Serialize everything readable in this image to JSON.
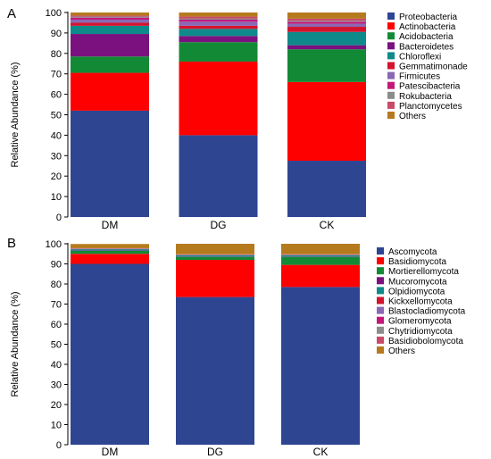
{
  "chart_data": [
    {
      "panel_label": "A",
      "type": "bar",
      "stacked": true,
      "categories": [
        "DM",
        "DG",
        "CK"
      ],
      "ylabel": "Relative Abundance (%)",
      "ylim": [
        0,
        100
      ],
      "yticks": [
        "0",
        "10",
        "20",
        "30",
        "40",
        "50",
        "60",
        "70",
        "80",
        "90",
        "100"
      ],
      "grid": false,
      "legend_position": "right",
      "series": [
        {
          "name": "Proteobacteria",
          "color": "#2e4592",
          "values": [
            52,
            40,
            27.5
          ]
        },
        {
          "name": "Actinobacteria",
          "color": "#ff0000",
          "values": [
            18.5,
            36,
            38.5
          ]
        },
        {
          "name": "Acidobacteria",
          "color": "#128a35",
          "values": [
            8,
            9.5,
            16
          ]
        },
        {
          "name": "Bacteroidetes",
          "color": "#7a117f",
          "values": [
            11,
            3,
            2
          ]
        },
        {
          "name": "Chloroflexi",
          "color": "#0f8a8a",
          "values": [
            4,
            3.5,
            6.5
          ]
        },
        {
          "name": "Gemmatimonade",
          "color": "#d4132d",
          "values": [
            1.5,
            1.5,
            2.5
          ]
        },
        {
          "name": "Firmicutes",
          "color": "#8a68b4",
          "values": [
            1.5,
            2,
            1.5
          ]
        },
        {
          "name": "Patescibacteria",
          "color": "#c2187a",
          "values": [
            1,
            1,
            1
          ]
        },
        {
          "name": "Rokubacteria",
          "color": "#8c8c8c",
          "values": [
            0.5,
            0.5,
            0.5
          ]
        },
        {
          "name": "Planctomycetes",
          "color": "#c94a68",
          "values": [
            0.5,
            1,
            1
          ]
        },
        {
          "name": "Others",
          "color": "#b67a1e",
          "values": [
            2,
            2,
            3
          ]
        }
      ]
    },
    {
      "panel_label": "B",
      "type": "bar",
      "stacked": true,
      "categories": [
        "DM",
        "DG",
        "CK"
      ],
      "ylabel": "Relative Abundance (%)",
      "ylim": [
        0,
        100
      ],
      "yticks": [
        "0",
        "10",
        "20",
        "30",
        "40",
        "50",
        "60",
        "70",
        "80",
        "90",
        "100"
      ],
      "grid": false,
      "legend_position": "right",
      "series": [
        {
          "name": "Ascomycota",
          "color": "#2e4592",
          "values": [
            90,
            73.5,
            78.5
          ]
        },
        {
          "name": "Basidiomycota",
          "color": "#ff0000",
          "values": [
            5,
            18.5,
            11
          ]
        },
        {
          "name": "Mortierellomycota",
          "color": "#128a35",
          "values": [
            1.5,
            1.5,
            4
          ]
        },
        {
          "name": "Mucoromycota",
          "color": "#7a117f",
          "values": [
            0.2,
            0.2,
            0.2
          ]
        },
        {
          "name": "Olpidiomycota",
          "color": "#0f8a8a",
          "values": [
            0.6,
            0.6,
            0.6
          ]
        },
        {
          "name": "Kickxellomycota",
          "color": "#d4132d",
          "values": [
            0.1,
            0.1,
            0.1
          ]
        },
        {
          "name": "Blastocladiomycota",
          "color": "#8a68b4",
          "values": [
            0.1,
            0.1,
            0.1
          ]
        },
        {
          "name": "Glomeromycota",
          "color": "#c2187a",
          "values": [
            0.1,
            0.1,
            0.1
          ]
        },
        {
          "name": "Chytridiomycota",
          "color": "#8c8c8c",
          "values": [
            0.1,
            0.1,
            0.1
          ]
        },
        {
          "name": "Basidiobolomycota",
          "color": "#c94a68",
          "values": [
            0.1,
            0.1,
            0.1
          ]
        },
        {
          "name": "Others",
          "color": "#b67a1e",
          "values": [
            2.1,
            5.3,
            5.2
          ]
        }
      ]
    }
  ]
}
